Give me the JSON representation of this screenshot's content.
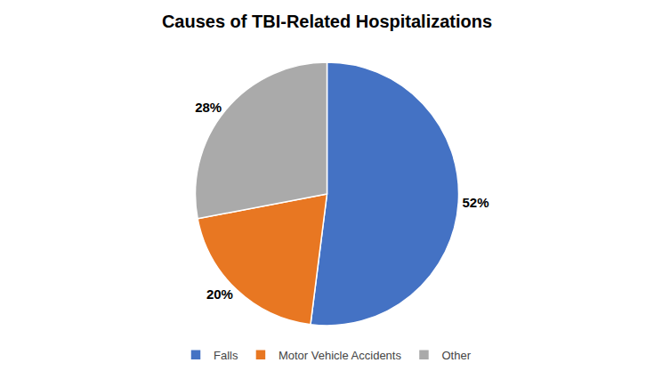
{
  "chart_data": {
    "type": "pie",
    "title": "Causes of TBI-Related Hospitalizations",
    "categories": [
      "Falls",
      "Motor Vehicle Accidents",
      "Other"
    ],
    "values": [
      52,
      20,
      28
    ],
    "value_labels": [
      "52%",
      "20%",
      "28%"
    ],
    "colors": [
      "#4472C4",
      "#E87722",
      "#AAAAAA"
    ],
    "data_labels": true,
    "legend": "bottom"
  }
}
